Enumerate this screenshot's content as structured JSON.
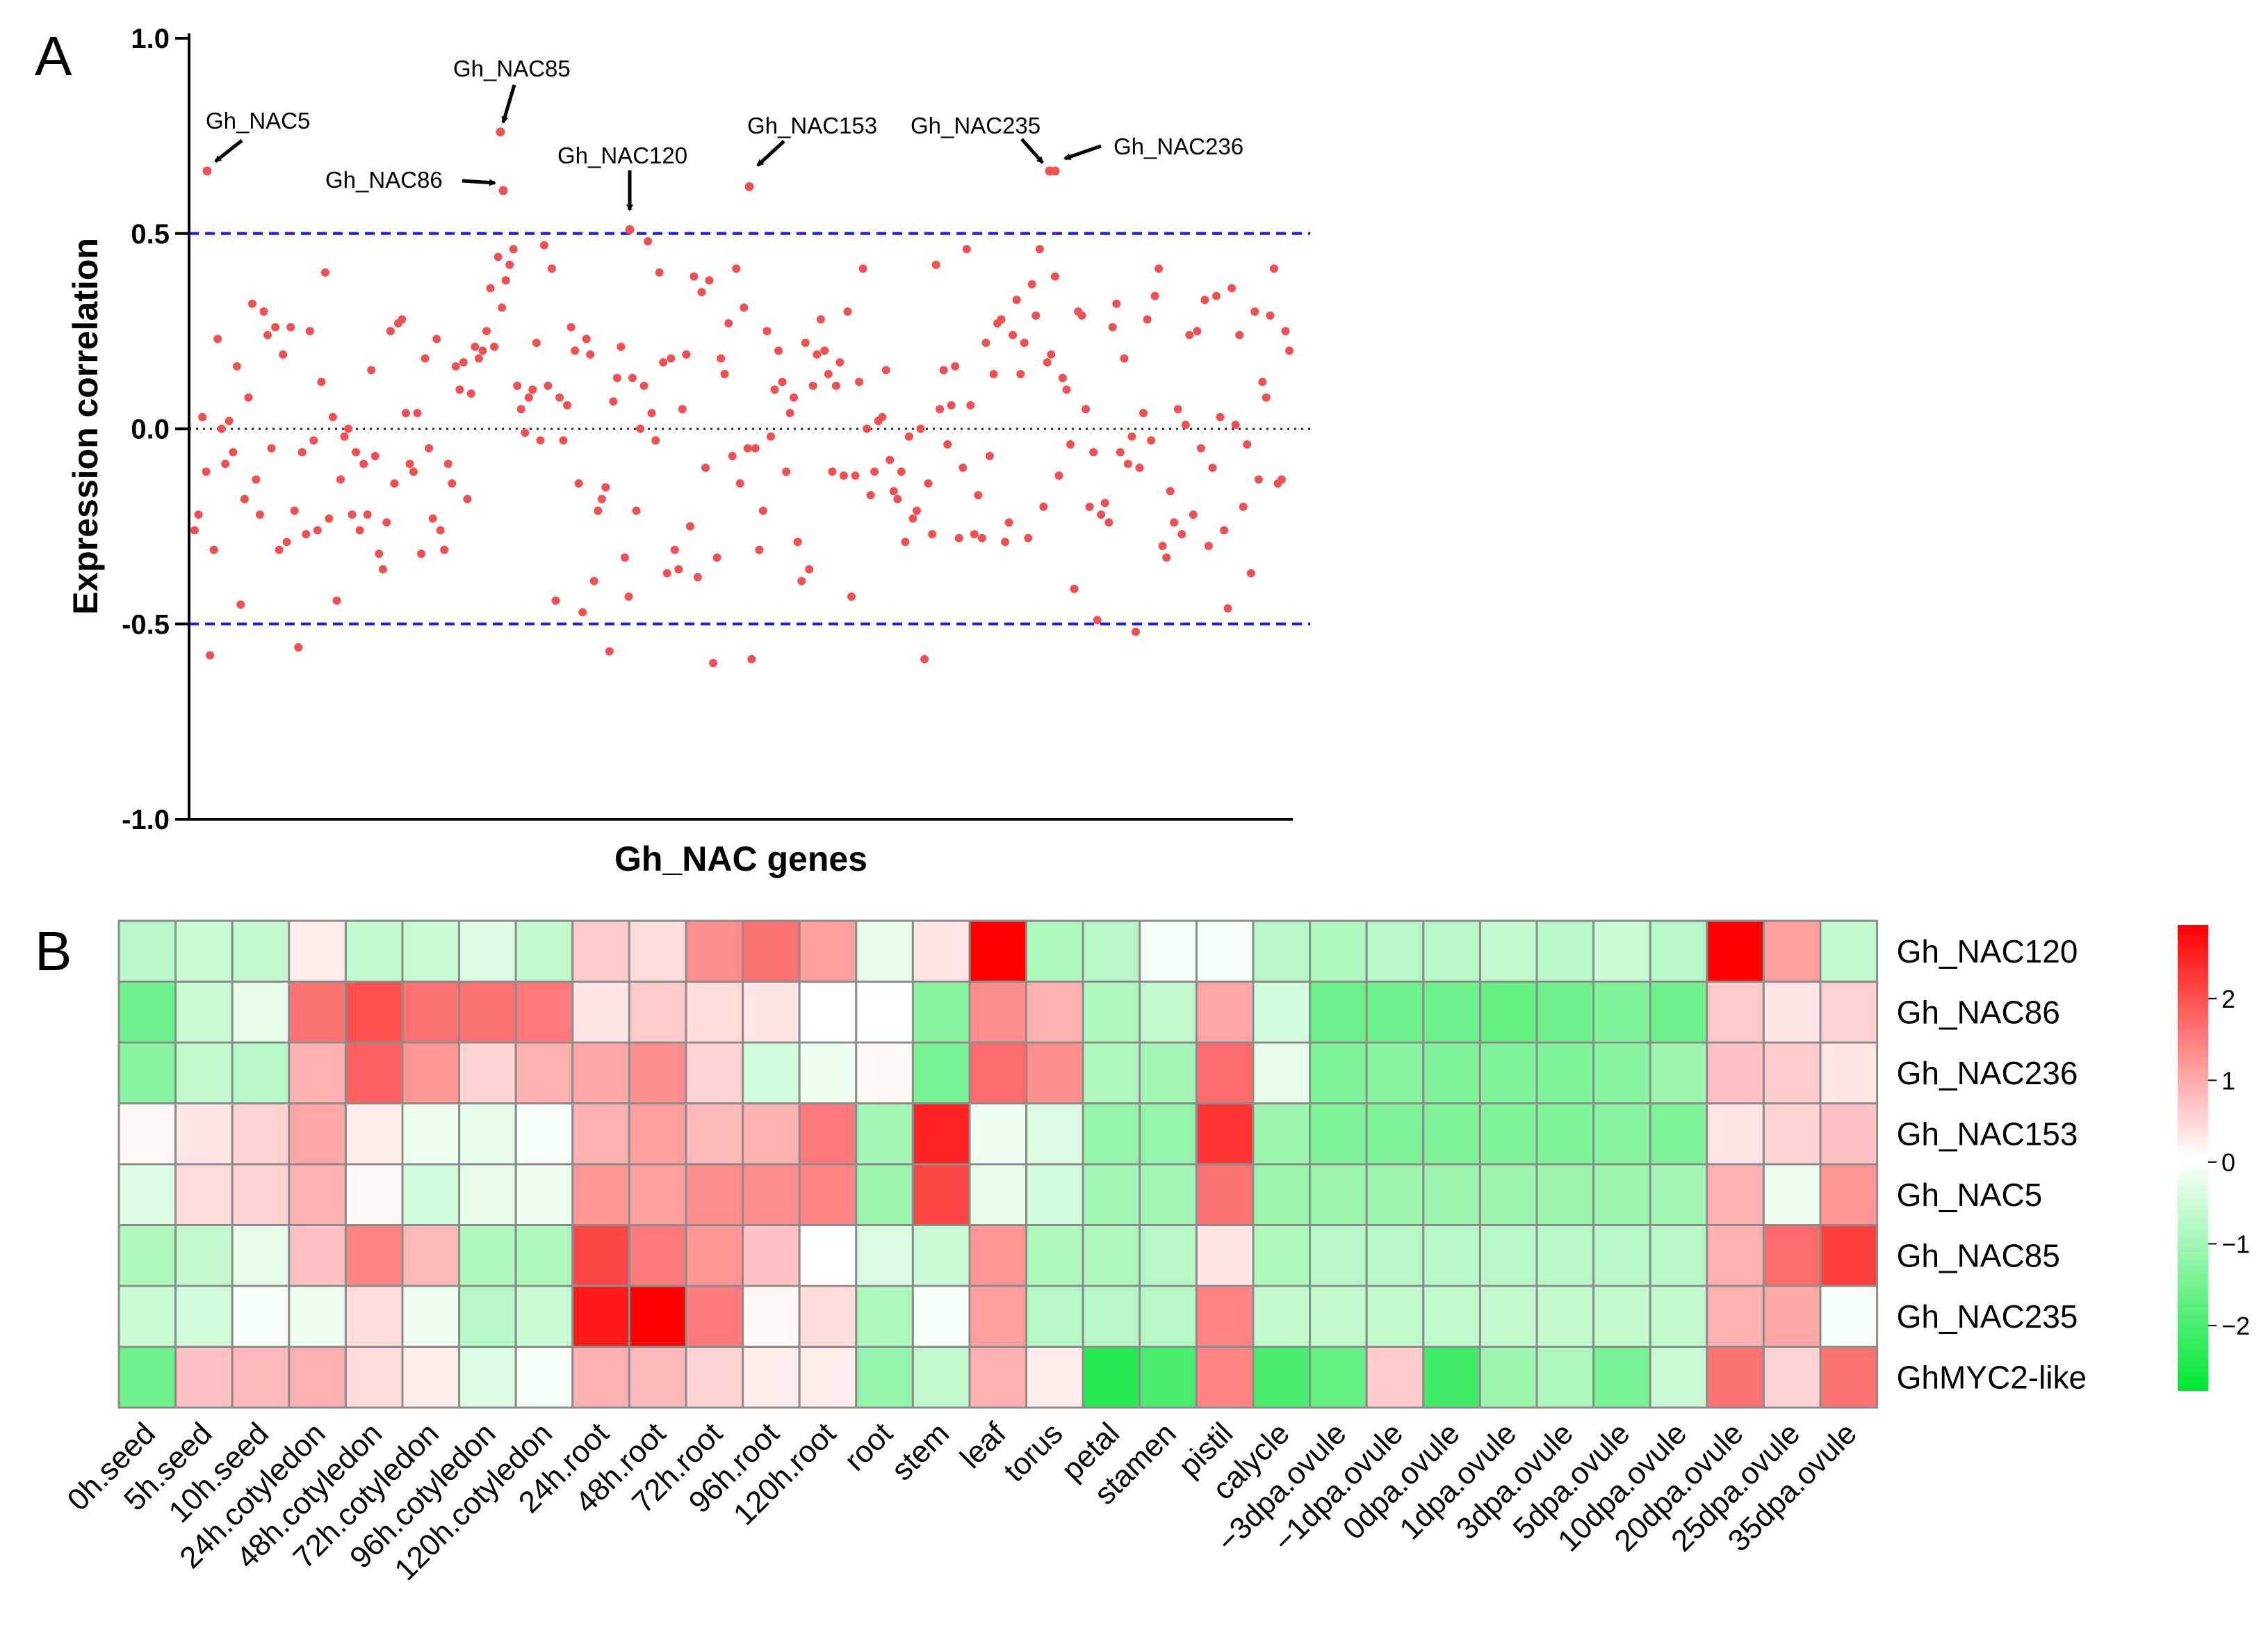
{
  "chart_data": [
    {
      "type": "scatter",
      "panel_label": "A",
      "ylabel": "Expression correlation",
      "xlabel": "Gh_NAC genes",
      "ylim": [
        -1.0,
        1.0
      ],
      "yticks": [
        "1.0",
        "0.5",
        "0.0",
        "-0.5",
        "-1.0"
      ],
      "ytick_values": [
        1.0,
        0.5,
        0.0,
        -0.5,
        -1.0
      ],
      "reference_lines": [
        {
          "value": 0.5,
          "style": "dashed",
          "color": "#1a1aff"
        },
        {
          "value": 0.0,
          "style": "dotted",
          "color": "#333333"
        },
        {
          "value": -0.5,
          "style": "dashed",
          "color": "#1a1aff"
        }
      ],
      "point_color": "#f05050",
      "n_genes": 290,
      "values": [
        -0.26,
        -0.22,
        0.03,
        -0.11,
        -0.58,
        -0.31,
        0.23,
        0.0,
        -0.09,
        0.02,
        -0.06,
        0.16,
        -0.45,
        -0.18,
        0.08,
        0.32,
        -0.13,
        -0.22,
        0.3,
        0.24,
        -0.05,
        0.26,
        -0.31,
        0.19,
        -0.29,
        0.26,
        -0.21,
        -0.56,
        -0.06,
        -0.27,
        0.25,
        -0.03,
        -0.26,
        0.12,
        0.4,
        -0.23,
        0.03,
        -0.44,
        -0.13,
        -0.02,
        0.0,
        -0.22,
        -0.06,
        -0.26,
        -0.09,
        -0.22,
        0.15,
        -0.07,
        -0.32,
        -0.36,
        -0.24,
        0.25,
        -0.14,
        0.27,
        0.28,
        0.04,
        -0.09,
        -0.11,
        0.04,
        -0.32,
        0.18,
        -0.05,
        -0.23,
        0.23,
        -0.26,
        -0.31,
        -0.09,
        -0.14,
        0.16,
        0.1,
        0.17,
        -0.18,
        0.09,
        0.21,
        0.18,
        0.2,
        0.25,
        0.36,
        0.21,
        0.44,
        0.31,
        0.38,
        0.42,
        0.46,
        0.11,
        0.05,
        -0.01,
        0.08,
        0.1,
        0.22,
        -0.03,
        0.47,
        0.11,
        0.41,
        -0.44,
        0.08,
        -0.03,
        0.06,
        0.26,
        0.2,
        -0.14,
        -0.47,
        0.23,
        0.19,
        -0.39,
        -0.21,
        -0.18,
        -0.15,
        -0.57,
        0.07,
        0.13,
        0.21,
        -0.33,
        -0.43,
        0.13,
        -0.21,
        0.0,
        0.11,
        0.48,
        0.04,
        -0.03,
        0.4,
        0.17,
        -0.37,
        0.18,
        -0.31,
        -0.36,
        0.05,
        0.19,
        -0.25,
        0.39,
        -0.38,
        0.35,
        -0.1,
        0.38,
        -0.6,
        -0.33,
        0.18,
        0.14,
        0.27,
        -0.07,
        0.41,
        -0.14,
        0.31,
        -0.05,
        -0.59,
        -0.05,
        -0.31,
        -0.21,
        0.25,
        -0.02,
        0.1,
        0.2,
        0.12,
        -0.11,
        0.04,
        0.08,
        -0.29,
        -0.39,
        0.22,
        -0.36,
        0.11,
        0.19,
        0.28,
        0.2,
        0.14,
        -0.11,
        0.11,
        0.17,
        -0.12,
        0.3,
        -0.43,
        -0.12,
        0.12,
        0.41,
        0.0,
        -0.17,
        -0.11,
        0.02,
        0.03,
        0.15,
        -0.08,
        -0.16,
        -0.18,
        -0.11,
        -0.29,
        -0.02,
        -0.23,
        -0.21,
        0.0,
        -0.59,
        -0.14,
        -0.27,
        0.42,
        0.05,
        0.15,
        -0.04,
        0.06,
        0.16,
        -0.28,
        -0.1,
        0.46,
        0.06,
        -0.27,
        -0.17,
        -0.28,
        0.22,
        -0.07,
        0.14,
        0.27,
        0.28,
        -0.29,
        -0.24,
        0.24,
        0.33,
        0.14,
        0.22,
        -0.28,
        0.37,
        0.29,
        0.46,
        -0.2,
        0.17,
        0.19,
        0.39,
        -0.12,
        0.13,
        0.1,
        -0.04,
        -0.41,
        0.3,
        0.29,
        0.05,
        -0.2,
        -0.06,
        -0.49,
        -0.22,
        -0.19,
        -0.24,
        0.26,
        0.32,
        -0.06,
        0.18,
        -0.09,
        -0.02,
        -0.52,
        -0.1,
        0.04,
        0.28,
        -0.03,
        0.34,
        0.41,
        -0.3,
        -0.33,
        -0.16,
        -0.24,
        0.05,
        -0.27,
        0.01,
        0.24,
        -0.22,
        0.25,
        -0.05,
        0.33,
        -0.3,
        -0.1,
        0.34,
        0.03,
        -0.26,
        -0.46,
        0.36,
        0.01,
        0.24,
        -0.2,
        -0.04,
        -0.37,
        0.3,
        -0.13,
        0.12,
        0.08,
        0.29,
        0.41,
        -0.14,
        -0.13,
        0.25,
        0.2
      ],
      "highlighted": [
        {
          "label": "Gh_NAC5",
          "value": 0.66
        },
        {
          "label": "Gh_NAC86",
          "value": 0.61
        },
        {
          "label": "Gh_NAC85",
          "value": 0.76
        },
        {
          "label": "Gh_NAC120",
          "value": 0.51
        },
        {
          "label": "Gh_NAC153",
          "value": 0.62
        },
        {
          "label": "Gh_NAC235",
          "value": 0.66
        },
        {
          "label": "Gh_NAC236",
          "value": 0.66
        }
      ]
    },
    {
      "type": "heatmap",
      "panel_label": "B",
      "rows": [
        "Gh_NAC120",
        "Gh_NAC86",
        "Gh_NAC236",
        "Gh_NAC153",
        "Gh_NAC5",
        "Gh_NAC85",
        "Gh_NAC235",
        "GhMYC2-like"
      ],
      "columns": [
        "0h.seed",
        "5h.seed",
        "10h.seed",
        "24h.cotyledon",
        "48h.cotyledon",
        "72h.cotyledon",
        "96h.cotyledon",
        "120h.cotyledon",
        "24h.root",
        "48h.root",
        "72h.root",
        "96h.root",
        "120h.root",
        "root",
        "stem",
        "leaf",
        "torus",
        "petal",
        "stamen",
        "pistil",
        "calycle",
        "−3dpa.ovule",
        "−1dpa.ovule",
        "0dpa.ovule",
        "1dpa.ovule",
        "3dpa.ovule",
        "5dpa.ovule",
        "10dpa.ovule",
        "20dpa.ovule",
        "25dpa.ovule",
        "35dpa.ovule"
      ],
      "values": [
        [
          -0.8,
          -0.6,
          -0.7,
          0.2,
          -0.7,
          -0.6,
          -0.4,
          -0.7,
          0.6,
          0.4,
          1.3,
          1.6,
          1.1,
          -0.3,
          0.3,
          2.9,
          -0.9,
          -0.8,
          -0.1,
          -0.1,
          -0.8,
          -0.9,
          -0.8,
          -0.8,
          -0.7,
          -0.8,
          -0.6,
          -0.8,
          2.9,
          1.1,
          -0.7
        ],
        [
          -1.6,
          -0.6,
          -0.3,
          1.6,
          2.0,
          1.6,
          1.6,
          1.5,
          0.3,
          0.6,
          0.4,
          0.3,
          0.0,
          0.0,
          -1.3,
          1.3,
          0.9,
          -0.9,
          -0.7,
          1.0,
          -0.5,
          -1.6,
          -1.6,
          -1.6,
          -1.7,
          -1.6,
          -1.4,
          -1.6,
          0.6,
          0.3,
          0.5
        ],
        [
          -1.3,
          -0.7,
          -0.8,
          0.9,
          1.8,
          1.2,
          0.5,
          0.9,
          1.0,
          1.3,
          0.5,
          -0.5,
          -0.2,
          0.1,
          -1.5,
          1.7,
          1.3,
          -0.9,
          -1.0,
          1.7,
          -0.3,
          -1.4,
          -1.3,
          -1.4,
          -1.4,
          -1.4,
          -1.3,
          -1.1,
          0.7,
          0.6,
          0.3
        ],
        [
          0.1,
          0.3,
          0.5,
          1.0,
          0.2,
          -0.2,
          -0.3,
          -0.1,
          0.9,
          1.1,
          0.8,
          0.9,
          1.5,
          -1.0,
          2.5,
          -0.2,
          -0.4,
          -1.2,
          -1.2,
          2.3,
          -1.1,
          -1.4,
          -1.4,
          -1.4,
          -1.4,
          -1.4,
          -1.3,
          -1.4,
          0.3,
          0.5,
          0.7
        ],
        [
          -0.4,
          0.4,
          0.5,
          0.9,
          0.1,
          -0.5,
          -0.3,
          -0.2,
          1.2,
          1.1,
          1.3,
          1.3,
          1.4,
          -1.1,
          2.1,
          -0.3,
          -0.5,
          -1.0,
          -1.0,
          1.6,
          -1.1,
          -1.1,
          -1.1,
          -1.1,
          -1.1,
          -1.1,
          -1.1,
          -1.0,
          0.9,
          -0.2,
          1.2
        ],
        [
          -0.9,
          -0.7,
          -0.3,
          0.7,
          1.4,
          0.8,
          -0.9,
          -0.9,
          2.1,
          1.5,
          1.2,
          0.7,
          0.0,
          -0.4,
          -0.6,
          1.2,
          -0.9,
          -0.9,
          -0.8,
          0.3,
          -0.9,
          -0.8,
          -0.8,
          -0.8,
          -0.8,
          -0.8,
          -0.8,
          -0.8,
          0.9,
          1.7,
          2.2
        ],
        [
          -0.6,
          -0.5,
          -0.1,
          -0.2,
          0.4,
          -0.2,
          -0.8,
          -0.6,
          2.6,
          3.0,
          1.5,
          0.1,
          0.4,
          -0.9,
          -0.1,
          1.1,
          -0.8,
          -0.8,
          -0.8,
          1.4,
          -0.7,
          -0.7,
          -0.7,
          -0.7,
          -0.7,
          -0.7,
          -0.7,
          -0.7,
          0.9,
          1.0,
          -0.1
        ],
        [
          -1.6,
          0.7,
          0.8,
          0.9,
          0.4,
          0.2,
          -0.4,
          -0.1,
          0.9,
          0.8,
          0.5,
          0.2,
          0.2,
          -1.2,
          -0.7,
          0.9,
          0.2,
          -2.4,
          -2.0,
          1.4,
          -2.0,
          -1.7,
          0.6,
          -2.1,
          -1.1,
          -0.9,
          -1.5,
          -0.6,
          1.6,
          0.5,
          1.6
        ]
      ],
      "color_scale": {
        "min": -2.8,
        "mid": 0,
        "max": 2.9,
        "low": "#00e633",
        "middle": "#ffffff",
        "high": "#ff0000"
      },
      "legend_ticks": [
        "2",
        "1",
        "0",
        "−1",
        "−2"
      ],
      "legend_tick_values": [
        2,
        1,
        0,
        -1,
        -2
      ]
    }
  ]
}
